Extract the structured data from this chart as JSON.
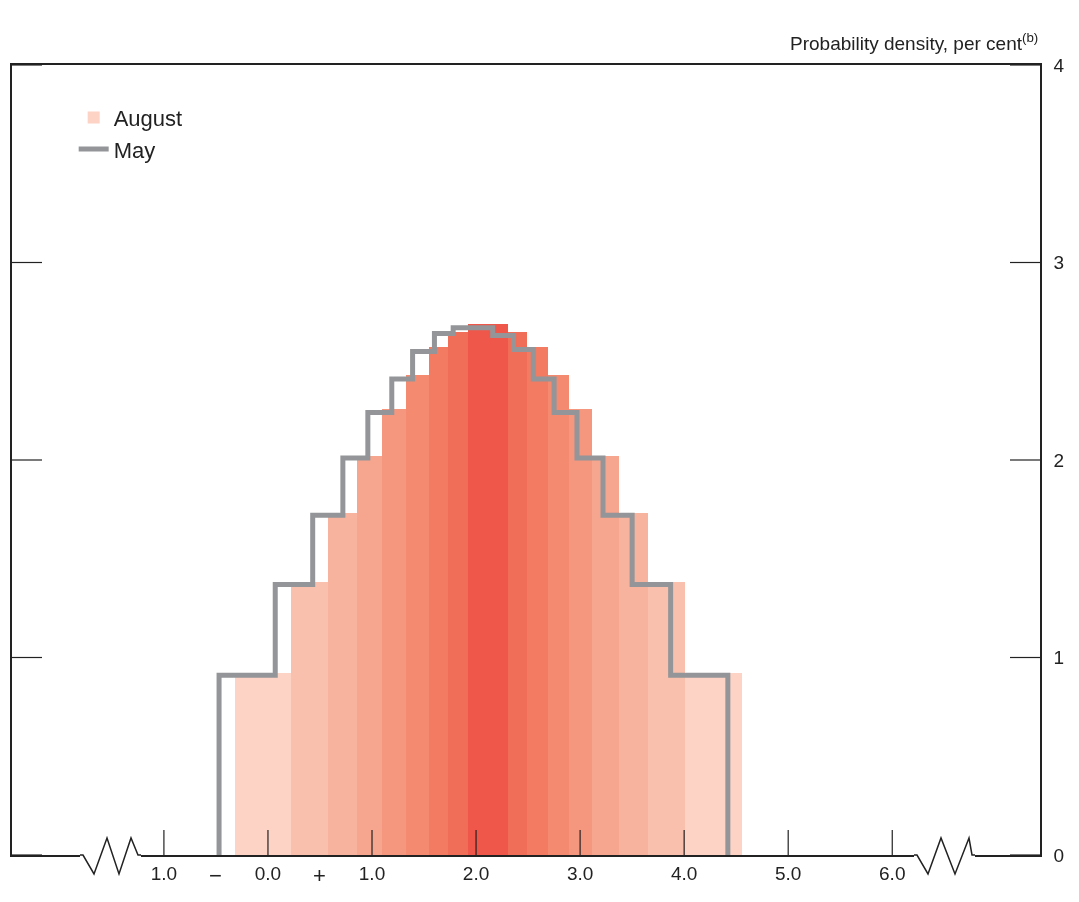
{
  "chart_data": {
    "type": "histogram",
    "ylabel": "Probability density, per cent$^{(b)}$",
    "xlim": [
      -2.46,
      7.42
    ],
    "ylim": [
      0,
      4
    ],
    "xticks": [
      {
        "value": -1,
        "label": "1.0"
      },
      {
        "value": 0,
        "label": "0.0"
      },
      {
        "value": 1,
        "label": "1.0"
      },
      {
        "value": 2,
        "label": "2.0"
      },
      {
        "value": 3,
        "label": "3.0"
      },
      {
        "value": 4,
        "label": "4.0"
      },
      {
        "value": 5,
        "label": "5.0"
      },
      {
        "value": 6,
        "label": "6.0"
      }
    ],
    "yticks": [
      0,
      1,
      2,
      3,
      4
    ],
    "annotations": [
      "−",
      "+"
    ],
    "grid": false,
    "legend": "top left",
    "series": [
      {
        "name": "August",
        "bins": [
          -0.32,
          0.22,
          0.58,
          0.86,
          1.1,
          1.33,
          1.55,
          1.73,
          1.92,
          2.31,
          2.49,
          2.69,
          2.89,
          3.11,
          3.37,
          3.65,
          4.01,
          4.56
        ],
        "values": [
          0.92,
          1.38,
          1.73,
          2.02,
          2.26,
          2.43,
          2.57,
          2.65,
          2.69,
          2.65,
          2.57,
          2.43,
          2.26,
          2.02,
          1.73,
          1.38,
          0.92
        ],
        "colors": [
          "#fcd3c5",
          "#f9c0ad",
          "#f7b39d",
          "#f6a58e",
          "#f5977f",
          "#f48a70",
          "#f27b62",
          "#f06d57",
          "#ef574a",
          "#f06d57",
          "#f27b62",
          "#f48a70",
          "#f5977f",
          "#f6a58e",
          "#f7b39d",
          "#f9c0ad",
          "#fcd3c5"
        ]
      },
      {
        "name": "May",
        "type": "step",
        "color": "#939598",
        "x": [
          -0.47,
          -0.47,
          0.07,
          0.43,
          0.72,
          0.96,
          1.19,
          1.39,
          1.6,
          1.78,
          2.16,
          2.36,
          2.55,
          2.75,
          2.97,
          3.22,
          3.5,
          3.87,
          4.42
        ],
        "values": [
          0,
          0.91,
          1.37,
          1.72,
          2.01,
          2.24,
          2.41,
          2.55,
          2.64,
          2.67,
          2.63,
          2.56,
          2.41,
          2.24,
          2.01,
          1.72,
          1.37,
          0.91,
          0
        ]
      }
    ]
  }
}
